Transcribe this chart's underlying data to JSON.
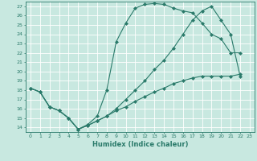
{
  "xlabel": "Humidex (Indice chaleur)",
  "bg_color": "#c8e8e0",
  "line_color": "#2a7a6a",
  "grid_color": "#b0d8d0",
  "xlim": [
    -0.5,
    23.5
  ],
  "ylim": [
    13.5,
    27.5
  ],
  "xticks": [
    0,
    1,
    2,
    3,
    4,
    5,
    6,
    7,
    8,
    9,
    10,
    11,
    12,
    13,
    14,
    15,
    16,
    17,
    18,
    19,
    20,
    21,
    22,
    23
  ],
  "yticks": [
    14,
    15,
    16,
    17,
    18,
    19,
    20,
    21,
    22,
    23,
    24,
    25,
    26,
    27
  ],
  "line1_x": [
    0,
    1,
    2,
    3,
    4,
    5,
    6,
    7,
    8,
    9,
    10,
    11,
    12,
    13,
    14,
    15,
    16,
    17,
    18,
    19,
    20,
    21,
    22
  ],
  "line1_y": [
    18.2,
    17.8,
    16.2,
    15.8,
    15.0,
    13.8,
    14.3,
    15.2,
    18.0,
    23.2,
    25.2,
    26.8,
    27.2,
    27.3,
    27.2,
    26.8,
    26.5,
    26.3,
    25.2,
    24.0,
    23.5,
    22.0,
    22.0
  ],
  "line2_x": [
    0,
    1,
    2,
    3,
    4,
    5,
    6,
    7,
    8,
    9,
    10,
    11,
    12,
    13,
    14,
    15,
    16,
    17,
    18,
    19,
    20,
    21,
    22
  ],
  "line2_y": [
    18.2,
    17.8,
    16.2,
    15.8,
    15.0,
    13.8,
    14.2,
    14.7,
    15.2,
    16.0,
    17.0,
    18.0,
    19.0,
    20.2,
    21.2,
    22.5,
    24.0,
    25.5,
    26.5,
    27.0,
    25.5,
    24.0,
    19.5
  ],
  "line3_x": [
    0,
    1,
    2,
    3,
    4,
    5,
    6,
    7,
    8,
    9,
    10,
    11,
    12,
    13,
    14,
    15,
    16,
    17,
    18,
    19,
    20,
    21,
    22
  ],
  "line3_y": [
    18.2,
    17.8,
    16.2,
    15.8,
    15.0,
    13.8,
    14.2,
    14.7,
    15.2,
    15.8,
    16.2,
    16.8,
    17.3,
    17.8,
    18.2,
    18.7,
    19.0,
    19.3,
    19.5,
    19.5,
    19.5,
    19.5,
    19.7
  ]
}
